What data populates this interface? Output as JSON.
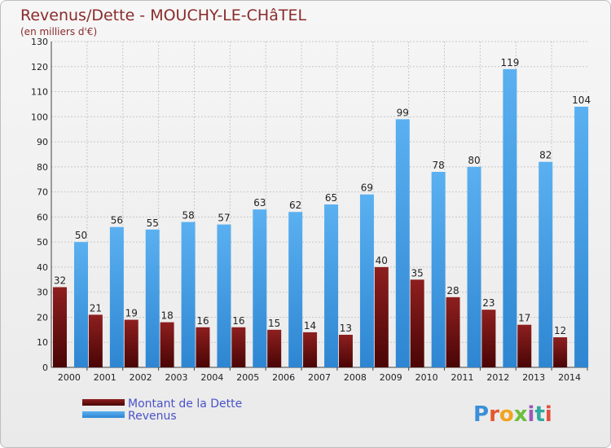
{
  "chart_data": {
    "type": "bar",
    "title": "Revenus/Dette - MOUCHY-LE-CHâTEL",
    "subtitle": "(en milliers d'€)",
    "categories": [
      "2000",
      "2001",
      "2002",
      "2003",
      "2004",
      "2005",
      "2006",
      "2007",
      "2008",
      "2009",
      "2010",
      "2011",
      "2012",
      "2013",
      "2014"
    ],
    "series": [
      {
        "name": "Montant de la Dette",
        "color": "#7a1616",
        "values": [
          32,
          21,
          19,
          18,
          16,
          16,
          15,
          14,
          13,
          40,
          35,
          28,
          23,
          17,
          12
        ]
      },
      {
        "name": "Revenus",
        "color": "#4aa0e6",
        "values": [
          50,
          56,
          55,
          58,
          57,
          63,
          62,
          65,
          69,
          99,
          78,
          80,
          119,
          82,
          104
        ]
      }
    ],
    "ylim": [
      0,
      130
    ],
    "yticks": [
      "0",
      "10",
      "20",
      "30",
      "40",
      "50",
      "60",
      "70",
      "80",
      "90",
      "100",
      "110",
      "120",
      "130"
    ],
    "grid": true,
    "legend_position": "bottom-left"
  },
  "brand": {
    "letters": [
      "P",
      "r",
      "o",
      "x",
      "i",
      "t",
      "i"
    ],
    "colors": [
      "#3b8fd8",
      "#e4572e",
      "#f2a41f",
      "#6cbf3c",
      "#9b59b6",
      "#2fa8a0",
      "#e74c3c"
    ]
  }
}
